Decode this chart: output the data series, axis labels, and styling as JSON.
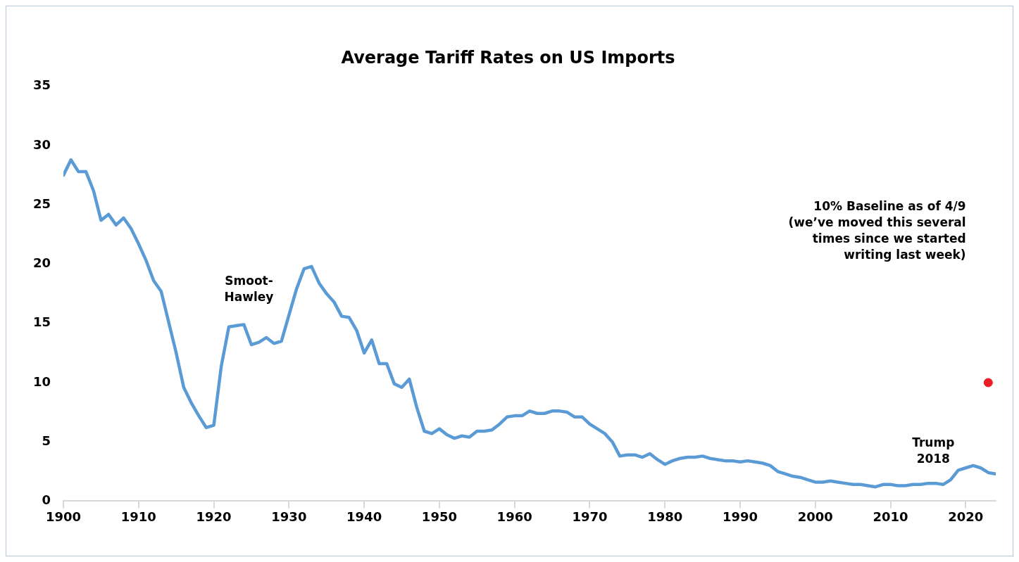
{
  "chart_data": {
    "type": "line",
    "title": "Average Tariff Rates on US Imports",
    "legend": false,
    "x": [
      1900,
      1901,
      1902,
      1903,
      1904,
      1905,
      1906,
      1907,
      1908,
      1909,
      1910,
      1911,
      1912,
      1913,
      1914,
      1915,
      1916,
      1917,
      1918,
      1919,
      1920,
      1921,
      1922,
      1923,
      1924,
      1925,
      1926,
      1927,
      1928,
      1929,
      1930,
      1931,
      1932,
      1933,
      1934,
      1935,
      1936,
      1937,
      1938,
      1939,
      1940,
      1941,
      1942,
      1943,
      1944,
      1945,
      1946,
      1947,
      1948,
      1949,
      1950,
      1951,
      1952,
      1953,
      1954,
      1955,
      1956,
      1957,
      1958,
      1959,
      1960,
      1961,
      1962,
      1963,
      1964,
      1965,
      1966,
      1967,
      1968,
      1969,
      1970,
      1971,
      1972,
      1973,
      1974,
      1975,
      1976,
      1977,
      1978,
      1979,
      1980,
      1981,
      1982,
      1983,
      1984,
      1985,
      1986,
      1987,
      1988,
      1989,
      1990,
      1991,
      1992,
      1993,
      1994,
      1995,
      1996,
      1997,
      1998,
      1999,
      2000,
      2001,
      2002,
      2003,
      2004,
      2005,
      2006,
      2007,
      2008,
      2009,
      2010,
      2011,
      2012,
      2013,
      2014,
      2015,
      2016,
      2017,
      2018,
      2019,
      2020,
      2021,
      2022,
      2023,
      2024
    ],
    "series": [
      {
        "color": "#5b9bd5",
        "marker": "none",
        "values": [
          27.5,
          28.8,
          27.8,
          27.8,
          26.2,
          23.7,
          24.2,
          23.3,
          23.9,
          23.0,
          21.7,
          20.3,
          18.6,
          17.7,
          15.1,
          12.5,
          9.6,
          8.3,
          7.2,
          6.2,
          6.4,
          11.4,
          14.7,
          14.8,
          14.9,
          13.2,
          13.4,
          13.8,
          13.3,
          13.5,
          15.7,
          17.9,
          19.6,
          19.8,
          18.4,
          17.5,
          16.8,
          15.6,
          15.5,
          14.4,
          12.5,
          13.6,
          11.6,
          11.6,
          9.9,
          9.6,
          10.3,
          7.9,
          5.9,
          5.7,
          6.1,
          5.6,
          5.3,
          5.5,
          5.4,
          5.9,
          5.9,
          6.0,
          6.5,
          7.1,
          7.2,
          7.2,
          7.6,
          7.4,
          7.4,
          7.6,
          7.6,
          7.5,
          7.1,
          7.1,
          6.5,
          6.1,
          5.7,
          5.0,
          3.8,
          3.9,
          3.9,
          3.7,
          4.0,
          3.5,
          3.1,
          3.4,
          3.6,
          3.7,
          3.7,
          3.8,
          3.6,
          3.5,
          3.4,
          3.4,
          3.3,
          3.4,
          3.3,
          3.2,
          3.0,
          2.5,
          2.3,
          2.1,
          2.0,
          1.8,
          1.6,
          1.6,
          1.7,
          1.6,
          1.5,
          1.4,
          1.4,
          1.3,
          1.2,
          1.4,
          1.4,
          1.3,
          1.3,
          1.4,
          1.4,
          1.5,
          1.5,
          1.4,
          1.8,
          2.6,
          2.8,
          3.0,
          2.8,
          2.4,
          2.3
        ]
      },
      {
        "type": "scatter",
        "color": "#ee1c25",
        "x": [
          2023
        ],
        "values": [
          10
        ]
      }
    ],
    "xlim": [
      1900,
      2024
    ],
    "xticks": [
      1900,
      1910,
      1920,
      1930,
      1940,
      1950,
      1960,
      1970,
      1980,
      1990,
      2000,
      2010,
      2020
    ],
    "ylim": [
      0,
      35
    ],
    "yticks": [
      0,
      5,
      10,
      15,
      20,
      25,
      30,
      35
    ],
    "annotations": [
      "Smoot-\nHawley",
      "10% Baseline as of 4/9\n(we’ve moved this several\ntimes since we started\nwriting last week)",
      "Trump\n2018"
    ]
  }
}
